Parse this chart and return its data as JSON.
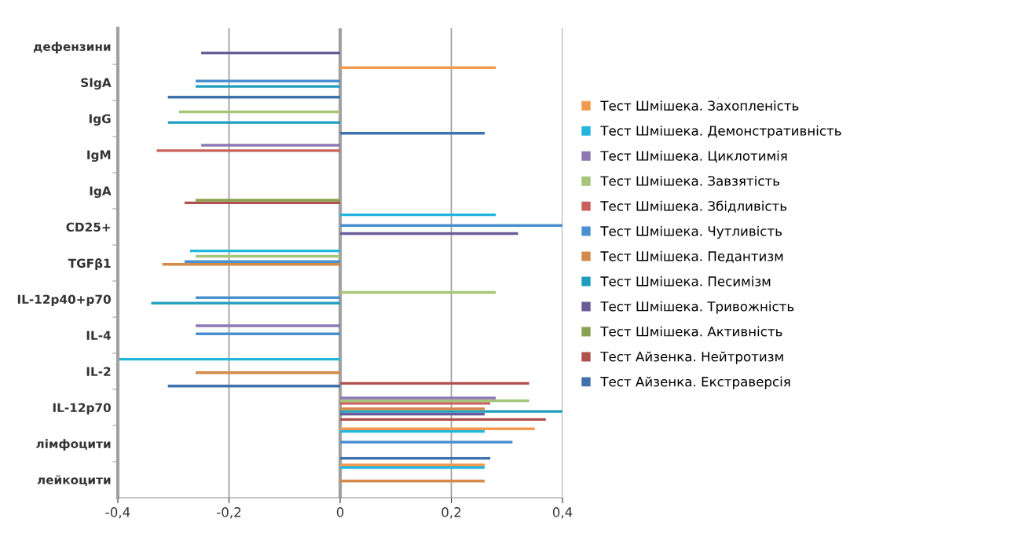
{
  "chart_data": {
    "type": "bar",
    "orientation": "horizontal",
    "categories": [
      "дефензини",
      "SIgA",
      "IgG",
      "IgM",
      "IgA",
      "CD25+",
      "TGFβ1",
      "IL-12p40+p70",
      "IL-4",
      "IL-2",
      "IL-12p70",
      "лімфоцити",
      "лейкоцити"
    ],
    "series": [
      {
        "name": "Тест Айзенка. Екстраверсія",
        "color": "#3f72ad",
        "values": [
          null,
          -0.31,
          0.26,
          null,
          null,
          null,
          null,
          null,
          null,
          -0.31,
          null,
          0.27,
          null
        ]
      },
      {
        "name": "Тест Айзенка. Нейтротизм",
        "color": "#b0504c",
        "values": [
          null,
          null,
          null,
          null,
          -0.28,
          null,
          null,
          null,
          null,
          0.34,
          0.37,
          null,
          null
        ]
      },
      {
        "name": "Тест Шмішека. Активність",
        "color": "#8aa052",
        "values": [
          null,
          null,
          null,
          null,
          -0.26,
          null,
          null,
          null,
          null,
          null,
          null,
          null,
          null
        ]
      },
      {
        "name": "Тест Шмішека. Тривожність",
        "color": "#6a5b9a",
        "values": [
          -0.25,
          null,
          null,
          null,
          null,
          0.32,
          null,
          null,
          null,
          null,
          0.26,
          null,
          null
        ]
      },
      {
        "name": "Тест Шмішека. Песимізм",
        "color": "#1f9dbf",
        "values": [
          null,
          -0.26,
          -0.31,
          null,
          null,
          null,
          null,
          -0.34,
          null,
          null,
          0.4,
          null,
          null
        ]
      },
      {
        "name": "Тест Шмішека. Педантизм",
        "color": "#d48a4a",
        "values": [
          null,
          null,
          null,
          null,
          null,
          null,
          -0.32,
          null,
          null,
          -0.26,
          0.26,
          null,
          0.26
        ]
      },
      {
        "name": "Тест Шмішека. Чутливість",
        "color": "#4a90d0",
        "values": [
          null,
          -0.26,
          null,
          null,
          null,
          0.4,
          -0.28,
          -0.26,
          -0.26,
          null,
          null,
          0.31,
          null
        ]
      },
      {
        "name": "Тест Шмішека. Збідливість",
        "color": "#c8605c",
        "values": [
          null,
          null,
          null,
          -0.33,
          null,
          null,
          null,
          null,
          null,
          null,
          0.27,
          null,
          null
        ]
      },
      {
        "name": "Тест Шмішека. Завзятість",
        "color": "#a6c47a",
        "values": [
          null,
          null,
          -0.29,
          null,
          null,
          null,
          -0.26,
          0.28,
          null,
          null,
          0.34,
          null,
          null
        ]
      },
      {
        "name": "Тест Шмішека. Циклотимія",
        "color": "#8c79b4",
        "values": [
          null,
          null,
          null,
          -0.25,
          null,
          null,
          null,
          null,
          -0.26,
          null,
          0.28,
          null,
          null
        ]
      },
      {
        "name": "Тест Шмішека. Демонстративність",
        "color": "#21b6de",
        "values": [
          null,
          null,
          null,
          null,
          null,
          0.28,
          -0.27,
          null,
          null,
          -0.4,
          null,
          0.26,
          0.26
        ]
      },
      {
        "name": "Тест Шмішека. Захопленість",
        "color": "#f39a4f",
        "values": [
          null,
          0.28,
          null,
          null,
          null,
          null,
          null,
          null,
          null,
          null,
          null,
          0.35,
          0.26
        ]
      }
    ],
    "xlim": [
      -0.4,
      0.4
    ],
    "xticks": [
      {
        "value": -0.4,
        "label": "-0,4"
      },
      {
        "value": -0.2,
        "label": "-0,2"
      },
      0,
      {
        "value": 0.2,
        "label": "0,2"
      },
      {
        "value": 0.4,
        "label": "0,4"
      }
    ],
    "grid": "x",
    "legend": "right"
  }
}
